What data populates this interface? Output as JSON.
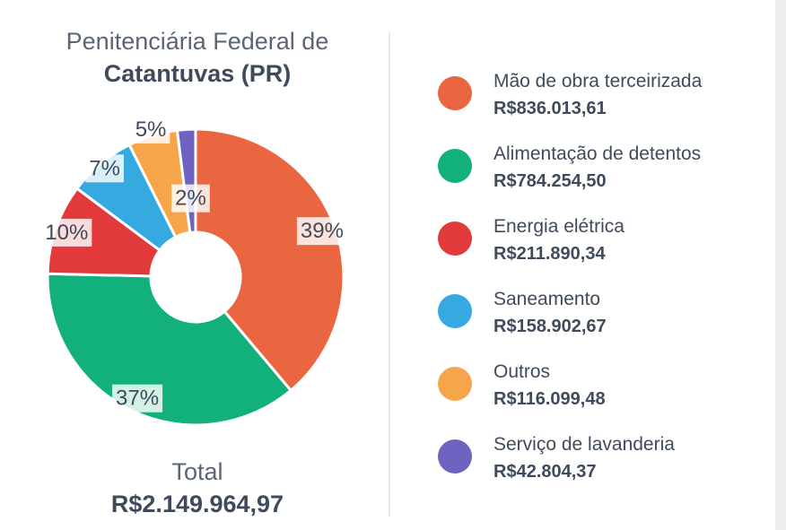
{
  "title": {
    "line1": "Penitenciária Federal de",
    "line2": "Catantuvas (PR)"
  },
  "total": {
    "label": "Total",
    "value": "R$2.149.964,97"
  },
  "chart_data": {
    "type": "pie",
    "style": "donut",
    "title": "Penitenciária Federal de Catantuvas (PR)",
    "legend_position": "right",
    "slices": [
      {
        "name": "Mão de obra terceirizada",
        "value": 836013.61,
        "value_label": "R$836.013,61",
        "percent_label": "39%",
        "color": "#ea6640"
      },
      {
        "name": "Alimentação de detentos",
        "value": 784254.5,
        "value_label": "R$784.254,50",
        "percent_label": "37%",
        "color": "#12b07c"
      },
      {
        "name": "Energia elétrica",
        "value": 211890.34,
        "value_label": "R$211.890,34",
        "percent_label": "10%",
        "color": "#e2393b"
      },
      {
        "name": "Saneamento",
        "value": 158902.67,
        "value_label": "R$158.902,67",
        "percent_label": "7%",
        "color": "#36a9e1"
      },
      {
        "name": "Outros",
        "value": 116099.48,
        "value_label": "R$116.099,48",
        "percent_label": "5%",
        "color": "#f6a54b"
      },
      {
        "name": "Serviço de lavanderia",
        "value": 42804.37,
        "value_label": "R$42.804,37",
        "percent_label": "2%",
        "color": "#6f63c1"
      }
    ]
  }
}
